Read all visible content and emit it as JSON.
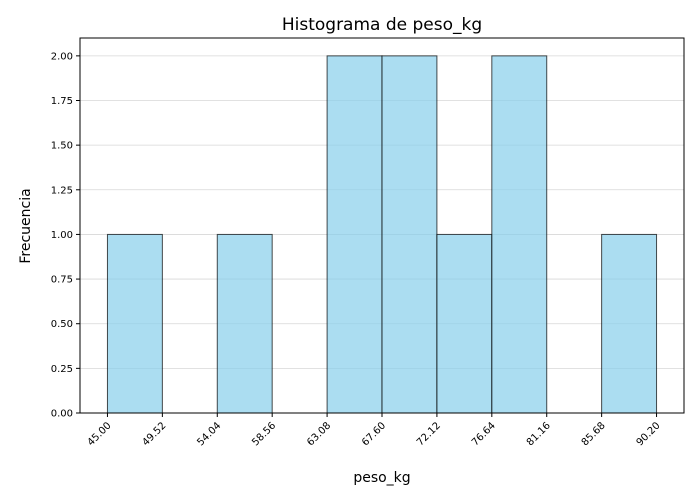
{
  "chart_data": {
    "type": "bar",
    "title": "Histograma de peso_kg",
    "xlabel": "peso_kg",
    "ylabel": "Frecuencia",
    "bin_edges": [
      45.0,
      49.52,
      54.04,
      58.56,
      63.08,
      67.6,
      72.12,
      76.64,
      81.16,
      85.68,
      90.2
    ],
    "x_tick_labels": [
      "45.00",
      "49.52",
      "54.04",
      "58.56",
      "63.08",
      "67.60",
      "72.12",
      "76.64",
      "81.16",
      "85.68",
      "90.20"
    ],
    "values": [
      1,
      0,
      1,
      0,
      2,
      2,
      1,
      2,
      0,
      1
    ],
    "y_ticks": [
      0.0,
      0.25,
      0.5,
      0.75,
      1.0,
      1.25,
      1.5,
      1.75,
      2.0
    ],
    "y_tick_labels": [
      "0.00",
      "0.25",
      "0.50",
      "0.75",
      "1.00",
      "1.25",
      "1.50",
      "1.75",
      "2.00"
    ],
    "xlim": [
      42.74,
      92.46
    ],
    "ylim": [
      0,
      2.1
    ],
    "grid": "y-axis",
    "colors": {
      "bar_fill": "#87ceeb",
      "bar_edge": "#000000",
      "grid": "#b0b0b0"
    }
  }
}
